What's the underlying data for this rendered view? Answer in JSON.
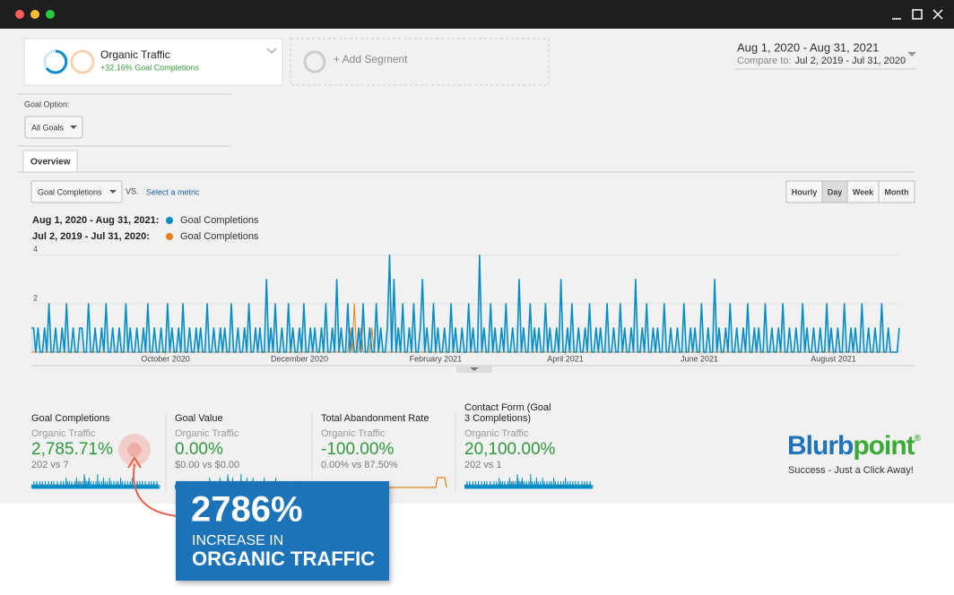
{
  "segments": {
    "primary": {
      "name": "Organic Traffic",
      "subtitle": "+32.16% Goal Completions"
    },
    "add": "+ Add Segment"
  },
  "date_range": {
    "range": "Aug 1, 2020 - Aug 31, 2021",
    "compare_label": "Compare to:",
    "compare": "Jul 2, 2019 - Jul 31, 2020"
  },
  "goal_option": {
    "label": "Goal Option:",
    "value": "All Goals"
  },
  "tabs": [
    "Overview"
  ],
  "metric_select": "Goal Completions",
  "vs": "VS.",
  "select_metric": "Select a metric",
  "granularity": [
    "Hourly",
    "Day",
    "Week",
    "Month"
  ],
  "chart_data": {
    "type": "line",
    "xlim": [
      0,
      395
    ],
    "xticks": [
      {
        "value": 61,
        "label": "October 2020"
      },
      {
        "value": 122,
        "label": "December 2020"
      },
      {
        "value": 184,
        "label": "February 2021"
      },
      {
        "value": 243,
        "label": "April 2021"
      },
      {
        "value": 304,
        "label": "June 2021"
      },
      {
        "value": 365,
        "label": "August 2021"
      }
    ],
    "ylim": [
      0,
      4.4
    ],
    "yticks": [
      2,
      4
    ],
    "grid": true,
    "series": [
      {
        "period": "Aug 1, 2020 - Aug 31, 2021:",
        "name": "Goal Completions",
        "color": "#058dc7",
        "values": [
          1,
          1,
          0,
          1,
          0,
          0,
          1,
          0,
          2,
          0,
          0,
          1,
          0,
          0,
          1,
          0,
          2,
          0,
          0,
          1,
          0,
          0,
          1,
          1,
          0,
          0,
          2,
          0,
          0,
          1,
          0,
          0,
          1,
          0,
          2,
          0,
          0,
          1,
          0,
          0,
          1,
          0,
          0,
          2,
          0,
          1,
          0,
          0,
          1,
          0,
          0,
          1,
          0,
          2,
          0,
          0,
          1,
          0,
          0,
          1,
          0,
          0,
          2,
          0,
          1,
          0,
          0,
          1,
          0,
          2,
          0,
          0,
          1,
          0,
          0,
          1,
          0,
          1,
          0,
          0,
          2,
          0,
          0,
          1,
          0,
          0,
          1,
          0,
          1,
          0,
          0,
          2,
          0,
          0,
          1,
          0,
          0,
          1,
          0,
          2,
          0,
          0,
          1,
          0,
          1,
          0,
          0,
          3,
          0,
          1,
          0,
          2,
          0,
          0,
          1,
          0,
          0,
          2,
          0,
          1,
          0,
          0,
          1,
          0,
          2,
          0,
          0,
          1,
          0,
          1,
          0,
          0,
          1,
          0,
          2,
          0,
          0,
          1,
          0,
          3,
          0,
          1,
          0,
          0,
          2,
          0,
          1,
          0,
          0,
          1,
          0,
          2,
          0,
          0,
          1,
          0,
          0,
          2,
          0,
          1,
          0,
          0,
          1,
          4,
          0,
          3,
          0,
          1,
          0,
          2,
          0,
          0,
          1,
          0,
          2,
          0,
          0,
          1,
          3,
          0,
          1,
          0,
          0,
          2,
          0,
          1,
          0,
          0,
          1,
          0,
          0,
          2,
          0,
          1,
          0,
          0,
          1,
          0,
          0,
          2,
          0,
          1,
          0,
          0,
          4,
          0,
          1,
          0,
          0,
          2,
          0,
          1,
          0,
          0,
          1,
          0,
          2,
          0,
          0,
          1,
          0,
          0,
          3,
          0,
          1,
          0,
          0,
          2,
          0,
          1,
          0,
          1,
          0,
          0,
          2,
          0,
          1,
          0,
          0,
          1,
          0,
          3,
          0,
          0,
          1,
          0,
          2,
          0,
          0,
          1,
          0,
          0,
          1,
          0,
          2,
          0,
          0,
          1,
          0,
          1,
          0,
          0,
          2,
          0,
          0,
          1,
          0,
          0,
          2,
          0,
          1,
          0,
          0,
          1,
          0,
          3,
          0,
          0,
          1,
          0,
          2,
          0,
          0,
          1,
          0,
          1,
          0,
          0,
          2,
          0,
          0,
          1,
          0,
          0,
          1,
          0,
          0,
          2,
          0,
          0,
          1,
          0,
          1,
          0,
          0,
          2,
          0,
          0,
          1,
          0,
          0,
          3,
          0,
          1,
          0,
          0,
          1,
          0,
          2,
          0,
          0,
          1,
          0,
          0,
          1,
          0,
          2,
          0,
          0,
          1,
          0,
          1,
          0,
          0,
          2,
          0,
          0,
          1,
          0,
          0,
          1,
          0,
          2,
          0,
          0,
          1,
          0,
          0,
          1,
          0,
          0,
          2,
          0,
          1,
          0,
          0,
          1,
          0,
          0,
          1,
          0,
          0,
          2,
          0,
          1,
          0,
          0,
          1,
          0,
          0,
          2,
          0,
          0,
          1,
          0,
          1,
          0,
          0,
          2,
          0,
          0,
          1,
          0,
          0,
          1,
          0,
          0,
          2,
          0,
          0,
          1,
          0,
          0,
          0,
          0,
          1
        ]
      },
      {
        "period": "Jul 2, 2019 - Jul 31, 2020:",
        "name": "Goal Completions",
        "color": "#ed7e17",
        "values": [
          0,
          0,
          0,
          0,
          0,
          0,
          0,
          0,
          0,
          0,
          0,
          0,
          0,
          0,
          0,
          0,
          0,
          0,
          0,
          0,
          0,
          0,
          0,
          0,
          0,
          0,
          0,
          0,
          0,
          0,
          0,
          0,
          0,
          0,
          0,
          0,
          0,
          0,
          0,
          0,
          0,
          0,
          0,
          0,
          0,
          0,
          0,
          0,
          0,
          0,
          0,
          0,
          0,
          0,
          0,
          0,
          0,
          0,
          0,
          0,
          0,
          0,
          0,
          0,
          0,
          0,
          0,
          0,
          0,
          0,
          0,
          0,
          0,
          0,
          0,
          0,
          0,
          0,
          0,
          0,
          0,
          0,
          0,
          0,
          0,
          0,
          0,
          0,
          0,
          0,
          0,
          0,
          0,
          0,
          0,
          0,
          0,
          0,
          0,
          0,
          0,
          0,
          1,
          0,
          0,
          0,
          0,
          0,
          0,
          0,
          0,
          0,
          0,
          0,
          0,
          0,
          0,
          0,
          0,
          0,
          0,
          0,
          0,
          0,
          0,
          0,
          0,
          0,
          0,
          0,
          0,
          0,
          0,
          0,
          0,
          0,
          0,
          0,
          0,
          0,
          0,
          0,
          0,
          0,
          0,
          1,
          0,
          2,
          0,
          0,
          1,
          0,
          0,
          0,
          0,
          1,
          0,
          0,
          0,
          0,
          0,
          0,
          0,
          0,
          0,
          0,
          0,
          0,
          0,
          0,
          0,
          0,
          0,
          0,
          0,
          0,
          0,
          0,
          0,
          0,
          0,
          0,
          0,
          0,
          0,
          0,
          0,
          0,
          0,
          0,
          0,
          0,
          0,
          0,
          0,
          0,
          0,
          0,
          0,
          0,
          0,
          0,
          0,
          0,
          0,
          0,
          0,
          0,
          0,
          0,
          0,
          0,
          0,
          0,
          0,
          0,
          0,
          0,
          0,
          0,
          0,
          0,
          0,
          0,
          0,
          0,
          0,
          0,
          0,
          0,
          0,
          0,
          0,
          0,
          0,
          0,
          0,
          0,
          0,
          0,
          0,
          0,
          0,
          0,
          0,
          0,
          0,
          0,
          0,
          0,
          0,
          0,
          0,
          0,
          0,
          0,
          0,
          0,
          0,
          0,
          0,
          0,
          0,
          0,
          0,
          0,
          0,
          0,
          0,
          0,
          0,
          0,
          0,
          0,
          0,
          0,
          0,
          0,
          0,
          0,
          0,
          0,
          0,
          0,
          0,
          0,
          0,
          0,
          0,
          0,
          0,
          0,
          0,
          0,
          0,
          0,
          0,
          0,
          0,
          0,
          0,
          0,
          0,
          0,
          0,
          0,
          0,
          0,
          0,
          0,
          0,
          0,
          0,
          0,
          0,
          0,
          0,
          0,
          0,
          0,
          0,
          0,
          0,
          0,
          0,
          0,
          0,
          0,
          0,
          0,
          0,
          0,
          0,
          0,
          0,
          0,
          0,
          0,
          0,
          0,
          0,
          0,
          0,
          0,
          0,
          0,
          0,
          0,
          0,
          0,
          0,
          0,
          0,
          0,
          0,
          0,
          0,
          0,
          0,
          0,
          0,
          0,
          0,
          0,
          0,
          0,
          0,
          0,
          0,
          0,
          0,
          0,
          0,
          0,
          0,
          0,
          0,
          0,
          0,
          0,
          0,
          0,
          0,
          0,
          0,
          0,
          0,
          0,
          0,
          0,
          0,
          0,
          0,
          0,
          0,
          1
        ]
      }
    ]
  },
  "metrics": [
    {
      "title": "Goal Completions",
      "segment": "Organic Traffic",
      "value": "2,785.71%",
      "comparison": "202 vs 7"
    },
    {
      "title": "Goal Value",
      "segment": "Organic Traffic",
      "value": "0.00%",
      "comparison": "$0.00 vs $0.00"
    },
    {
      "title": "Total Abandonment Rate",
      "segment": "Organic Traffic",
      "value": "-100.00%",
      "comparison": "0.00% vs 87.50%"
    },
    {
      "title": "Contact Form (Goal 3 Completions)",
      "segment": "Organic Traffic",
      "value": "20,100.00%",
      "comparison": "202 vs 1"
    }
  ],
  "callout": {
    "value": "2786%",
    "line1": "INCREASE IN",
    "line2": "ORGANIC TRAFFIC"
  },
  "logo": {
    "name_a": "Blurb",
    "name_b": "point",
    "mark": "®",
    "tagline": "Success - Just a Click Away!"
  }
}
